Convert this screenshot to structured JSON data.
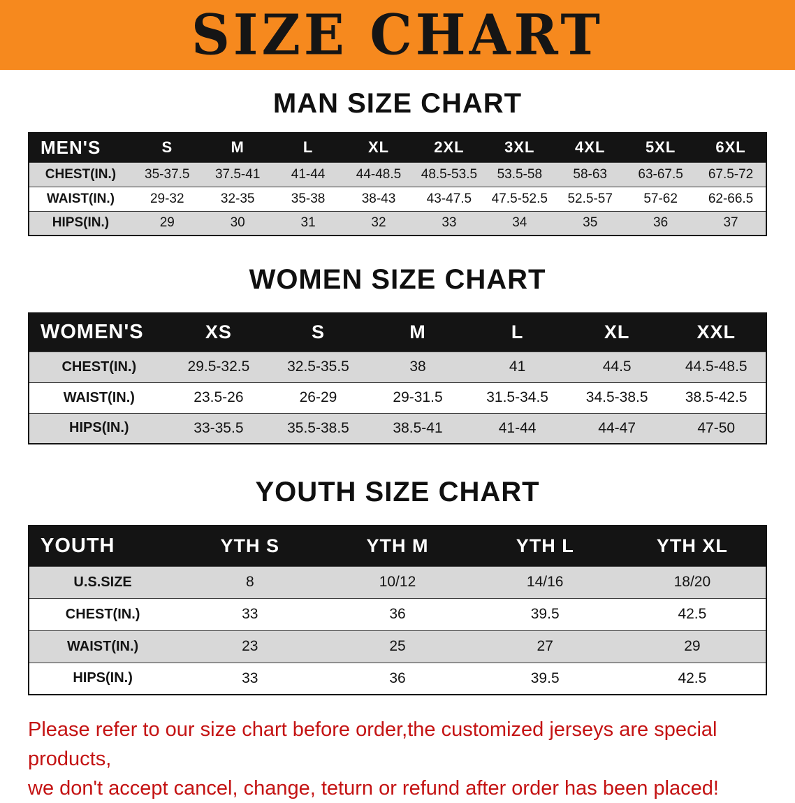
{
  "banner": {
    "title": "SIZE CHART"
  },
  "colors": {
    "banner_bg": "#f6891e",
    "title_color": "#151515",
    "header_bg": "#141414",
    "row_alt": "#d8d8d8",
    "disclaimer_red": "#c41313"
  },
  "sections": [
    {
      "heading": "MAN SIZE CHART",
      "table": {
        "header": [
          "MEN'S",
          "S",
          "M",
          "L",
          "XL",
          "2XL",
          "3XL",
          "4XL",
          "5XL",
          "6XL"
        ],
        "rows": [
          [
            "CHEST(IN.)",
            "35-37.5",
            "37.5-41",
            "41-44",
            "44-48.5",
            "48.5-53.5",
            "53.5-58",
            "58-63",
            "63-67.5",
            "67.5-72"
          ],
          [
            "WAIST(IN.)",
            "29-32",
            "32-35",
            "35-38",
            "38-43",
            "43-47.5",
            "47.5-52.5",
            "52.5-57",
            "57-62",
            "62-66.5"
          ],
          [
            "HIPS(IN.)",
            "29",
            "30",
            "31",
            "32",
            "33",
            "34",
            "35",
            "36",
            "37"
          ]
        ]
      }
    },
    {
      "heading": "WOMEN SIZE CHART",
      "table": {
        "header": [
          "WOMEN'S",
          "XS",
          "S",
          "M",
          "L",
          "XL",
          "XXL"
        ],
        "rows": [
          [
            "CHEST(IN.)",
            "29.5-32.5",
            "32.5-35.5",
            "38",
            "41",
            "44.5",
            "44.5-48.5"
          ],
          [
            "WAIST(IN.)",
            "23.5-26",
            "26-29",
            "29-31.5",
            "31.5-34.5",
            "34.5-38.5",
            "38.5-42.5"
          ],
          [
            "HIPS(IN.)",
            "33-35.5",
            "35.5-38.5",
            "38.5-41",
            "41-44",
            "44-47",
            "47-50"
          ]
        ]
      }
    },
    {
      "heading": "YOUTH SIZE CHART",
      "table": {
        "header": [
          "YOUTH",
          "YTH S",
          "YTH M",
          "YTH L",
          "YTH XL"
        ],
        "rows": [
          [
            "U.S.SIZE",
            "8",
            "10/12",
            "14/16",
            "18/20"
          ],
          [
            "CHEST(IN.)",
            "33",
            "36",
            "39.5",
            "42.5"
          ],
          [
            "WAIST(IN.)",
            "23",
            "25",
            "27",
            "29"
          ],
          [
            "HIPS(IN.)",
            "33",
            "36",
            "39.5",
            "42.5"
          ]
        ]
      }
    }
  ],
  "footer": {
    "lines": [
      "Please refer to our size chart before order,the customized jerseys are special products,",
      "we don't accept cancel, change, teturn or refund after order has been placed!"
    ]
  }
}
